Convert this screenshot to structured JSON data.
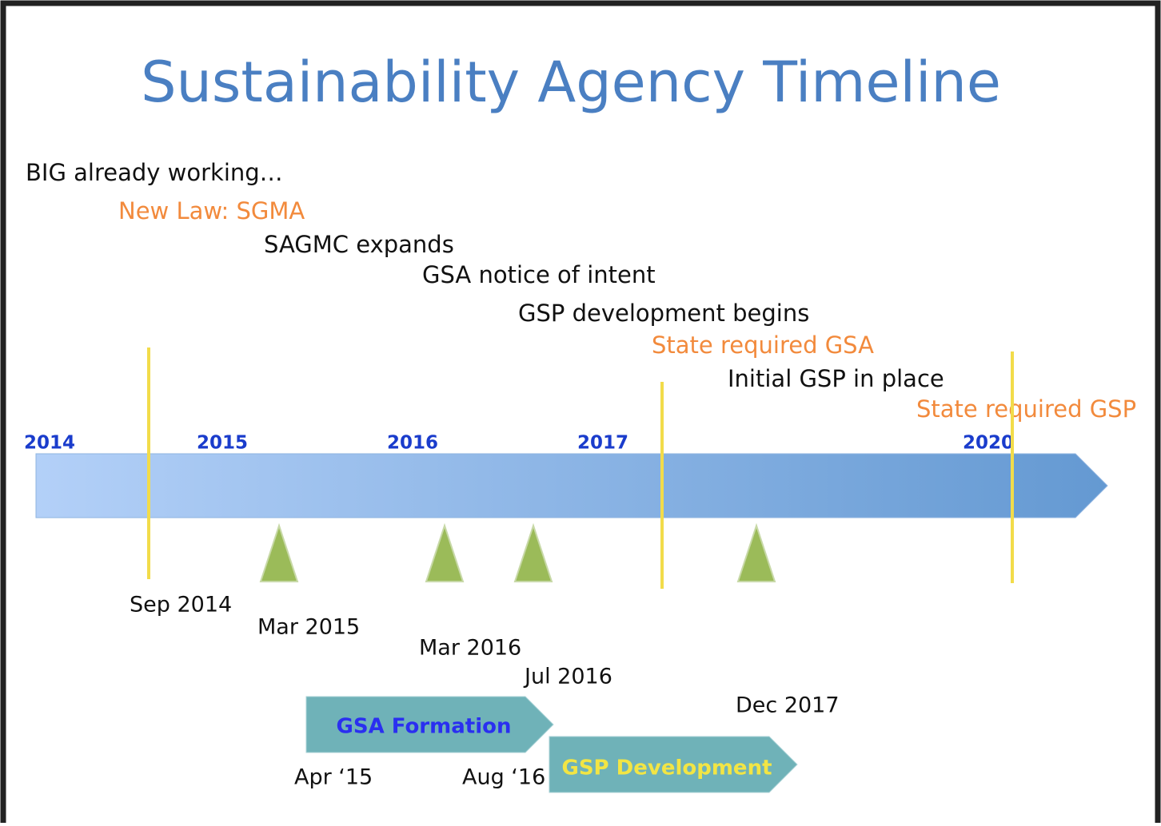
{
  "title": "Sustainability Agency Timeline",
  "events": [
    "BIG already working…",
    "New Law: SGMA",
    "SAGMC expands",
    "GSA notice of intent",
    "GSP development begins",
    "State required GSA",
    "Initial GSP in place",
    "State required GSP"
  ],
  "years": [
    "2014",
    "2015",
    "2016",
    "2017",
    "2020"
  ],
  "dates": [
    "Sep 2014",
    "Mar 2015",
    "Mar 2016",
    "Jul 2016",
    "Dec 2017"
  ],
  "phases": [
    {
      "label": "GSA Formation",
      "start": "Apr ‘15"
    },
    {
      "label": "GSP Development",
      "start": "Aug ‘16"
    }
  ]
}
